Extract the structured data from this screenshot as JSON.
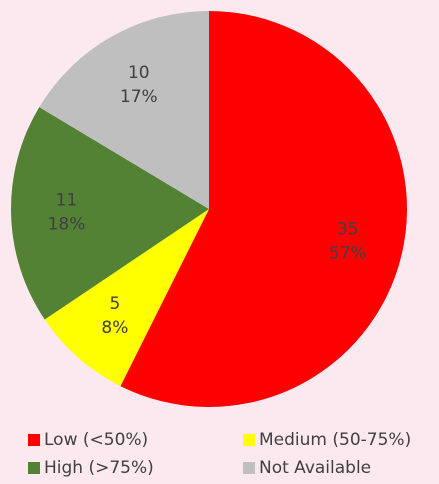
{
  "chart_data": {
    "type": "pie",
    "categories": [
      "Low (<50%)",
      "Medium (50-75%)",
      "High (>75%)",
      "Not Available"
    ],
    "values": [
      35,
      5,
      11,
      10
    ],
    "percent_labels": [
      "57%",
      "8%",
      "18%",
      "17%"
    ],
    "colors": [
      "#ff0000",
      "#ffff00",
      "#548235",
      "#bfbfbf"
    ],
    "legend": "bottom"
  }
}
